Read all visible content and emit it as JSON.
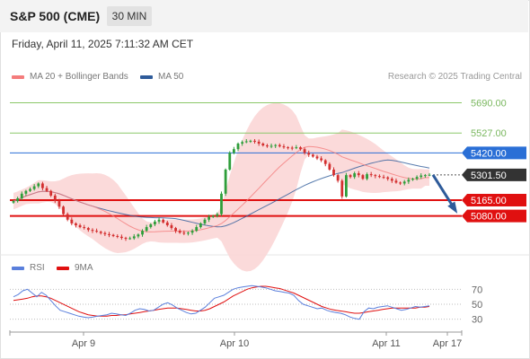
{
  "header": {
    "title": "S&P 500 (CME)",
    "timeframe": "30 MIN",
    "datetime": "Friday, April 11, 2025 7:11:32 AM CET"
  },
  "legend": {
    "ma20_label": "MA 20 + Bollinger Bands",
    "ma50_label": "MA 50",
    "credit": "Research © 2025 Trading Central"
  },
  "colors": {
    "ma20": "#f47c7c",
    "ma50": "#2e5b9a",
    "bollinger_fill": "#fbd6d6",
    "candle_up": "#2e9e3a",
    "candle_down": "#d32f2f",
    "resistance_green": "#8cc86a",
    "pivot_blue": "#2a6fd6",
    "support_red": "#e01010",
    "current_dark": "#333333",
    "forecast_arrow": "#2e5b9a",
    "rsi_line": "#5a7fdc",
    "rsi_ma": "#e01010"
  },
  "chart_data": [
    {
      "type": "candlestick",
      "title": "S&P 500 (CME)",
      "interval": "30 MIN",
      "ylim": [
        4880,
        5760
      ],
      "x_ticks": [
        "Apr 9",
        "Apr 10",
        "Apr 11",
        "Apr 17"
      ],
      "levels": [
        {
          "value": 5690.0,
          "label": "5690.00",
          "kind": "resistance"
        },
        {
          "value": 5527.0,
          "label": "5527.00",
          "kind": "resistance"
        },
        {
          "value": 5420.0,
          "label": "5420.00",
          "kind": "pivot"
        },
        {
          "value": 5301.5,
          "label": "5301.50",
          "kind": "current"
        },
        {
          "value": 5165.0,
          "label": "5165.00",
          "kind": "support"
        },
        {
          "value": 5080.0,
          "label": "5080.00",
          "kind": "support"
        }
      ],
      "price_path": [
        5160,
        5175,
        5200,
        5215,
        5225,
        5240,
        5255,
        5230,
        5215,
        5190,
        5160,
        5130,
        5090,
        5060,
        5040,
        5030,
        5020,
        5015,
        5005,
        5000,
        4995,
        4988,
        4982,
        4978,
        4972,
        4968,
        4962,
        4958,
        4960,
        4970,
        4980,
        5000,
        5020,
        5035,
        5050,
        5060,
        5045,
        5030,
        5015,
        5000,
        4990,
        4985,
        4990,
        5000,
        5020,
        5040,
        5060,
        5075,
        5080,
        5090,
        5200,
        5330,
        5420,
        5440,
        5470,
        5478,
        5482,
        5485,
        5480,
        5470,
        5460,
        5455,
        5458,
        5462,
        5455,
        5450,
        5448,
        5446,
        5450,
        5440,
        5420,
        5410,
        5400,
        5390,
        5380,
        5360,
        5330,
        5300,
        5270,
        5185,
        5300,
        5290,
        5310,
        5300,
        5280,
        5305,
        5300,
        5295,
        5290,
        5288,
        5280,
        5270,
        5260,
        5255,
        5265,
        5275,
        5280,
        5290,
        5298,
        5300,
        5302
      ],
      "forecast": {
        "from": 5301.5,
        "to": 5110
      }
    },
    {
      "type": "line",
      "title": "RSI",
      "ylim": [
        20,
        80
      ],
      "y_ticks": [
        70,
        50,
        30
      ],
      "series": [
        {
          "name": "RSI",
          "values": [
            60,
            63,
            68,
            70,
            65,
            60,
            66,
            62,
            55,
            48,
            42,
            40,
            38,
            36,
            34,
            33,
            32,
            33,
            34,
            35,
            36,
            38,
            37,
            36,
            35,
            38,
            42,
            44,
            43,
            41,
            42,
            46,
            50,
            52,
            49,
            45,
            42,
            39,
            37,
            38,
            42,
            46,
            52,
            58,
            60,
            62,
            66,
            70,
            72,
            73,
            74,
            75,
            74,
            73,
            72,
            70,
            68,
            67,
            66,
            65,
            62,
            55,
            50,
            48,
            46,
            44,
            45,
            42,
            40,
            39,
            38,
            36,
            33,
            31,
            30,
            40,
            45,
            44,
            46,
            47,
            48,
            46,
            44,
            42,
            43,
            45,
            47,
            46,
            47,
            48
          ]
        },
        {
          "name": "9MA",
          "values": [
            55,
            56,
            57,
            58,
            60,
            61,
            61,
            60,
            58,
            55,
            52,
            49,
            46,
            43,
            40,
            38,
            36,
            35,
            34,
            34,
            34,
            35,
            35,
            36,
            36,
            37,
            38,
            39,
            40,
            41,
            42,
            43,
            44,
            45,
            45,
            45,
            44,
            43,
            42,
            41,
            41,
            42,
            44,
            47,
            50,
            53,
            57,
            61,
            64,
            67,
            70,
            72,
            73,
            74,
            74,
            73,
            72,
            71,
            69,
            67,
            65,
            62,
            59,
            56,
            53,
            50,
            47,
            45,
            43,
            42,
            41,
            40,
            39,
            38,
            38,
            39,
            40,
            41,
            42,
            43,
            44,
            45,
            45,
            45,
            45,
            45,
            45,
            46,
            46,
            47
          ]
        }
      ]
    }
  ]
}
